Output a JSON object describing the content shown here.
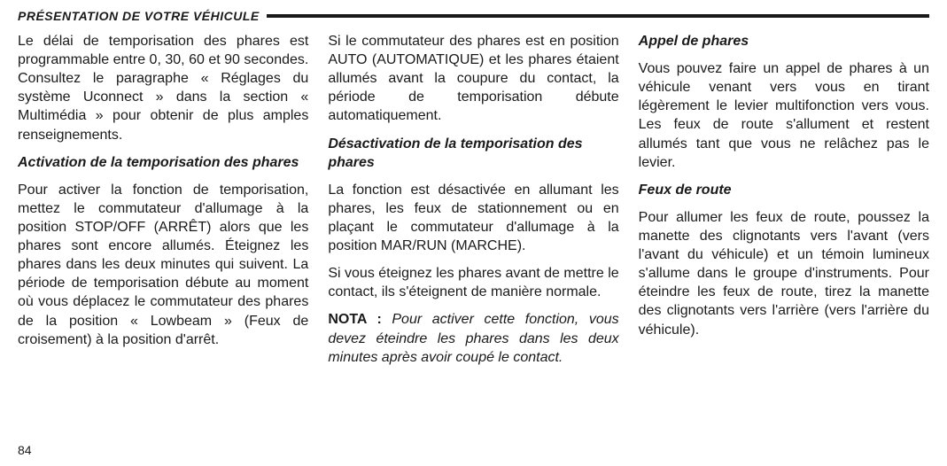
{
  "header": {
    "title": "PRÉSENTATION DE VOTRE VÉHICULE"
  },
  "columns": {
    "left": {
      "p1": "Le délai de temporisation des phares est programmable entre 0, 30, 60 et 90 se­condes. Consultez le paragraphe « Ré­glages du système Uconnect » dans la section « Multimédia » pour obtenir de plus amples renseignements.",
      "h1": "Activation de la temporisation des pha­res",
      "p2": "Pour activer la fonction de temporisation, mettez le commutateur d'allumage à la position STOP/OFF (ARRÊT) alors que les phares sont encore allumés. Éteignez les phares dans les deux minutes qui suivent. La période de temporisation débute au moment où vous déplacez le commuta­teur des phares de la position « Low­beam » (Feux de croisement) à la position d'arrêt."
    },
    "middle": {
      "p1": "Si le commutateur des phares est en po­sition AUTO (AUTOMATIQUE) et les pha­res étaient allumés avant la coupure du contact, la période de temporisation dé­bute automatiquement.",
      "h1": "Désactivation de la temporisation des phares",
      "p2": "La fonction est désactivée en allumant les phares, les feux de stationnement ou en plaçant le commutateur d'allumage à la position MAR/RUN (MARCHE).",
      "p3": "Si vous éteignez les phares avant de mettre le contact, ils s'éteignent de ma­nière normale.",
      "note_label": "NOTA :",
      "note_text": "  Pour activer cette fonction, vous devez éteindre les phares dans les deux minutes après avoir coupé le contact."
    },
    "right": {
      "h1": "Appel de phares",
      "p1": "Vous pouvez faire un appel de phares à un véhicule venant vers vous en tirant légèrement le levier multifonction vers vous. Les feux de route s'allument et res­tent allumés tant que vous ne relâchez pas le levier.",
      "h2": "Feux de route",
      "p2": "Pour allumer les feux de route, poussez la manette des clignotants vers l'avant (vers l'avant du véhicule) et un témoin lumineux s'allume dans le groupe d'instruments. Pour éteindre les feux de route, tirez la manette des clignotants vers l'arrière (vers l'arrière du véhicule)."
    }
  },
  "page_number": "84"
}
